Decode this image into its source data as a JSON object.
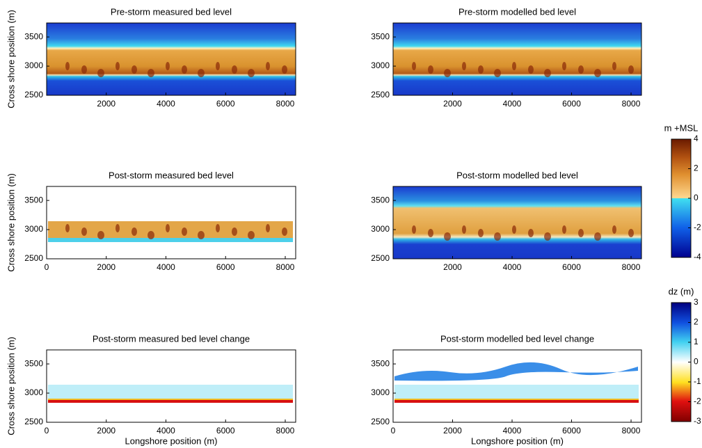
{
  "chart_data": [
    {
      "type": "heatmap",
      "title": "Pre-storm measured bed level",
      "ylabel": "Cross shore position (m)",
      "xlim": [
        0,
        8350
      ],
      "ylim": [
        2500,
        3740
      ],
      "xticks": [
        2000,
        4000,
        6000,
        8000
      ],
      "yticks": [
        2500,
        3000,
        3500
      ]
    },
    {
      "type": "heatmap",
      "title": "Pre-storm modelled bed level",
      "xlim": [
        0,
        8350
      ],
      "ylim": [
        2500,
        3740
      ],
      "xticks": [
        2000,
        4000,
        6000,
        8000
      ],
      "yticks": [
        2500,
        3000,
        3500
      ]
    },
    {
      "type": "heatmap",
      "title": "Post-storm measured bed level",
      "ylabel": "Cross shore position (m)",
      "xlim": [
        0,
        8350
      ],
      "ylim": [
        2500,
        3740
      ],
      "xticks": [
        0,
        2000,
        4000,
        6000,
        8000
      ],
      "yticks": [
        2500,
        3000,
        3500
      ]
    },
    {
      "type": "heatmap",
      "title": "Post-storm modelled bed level",
      "xlim": [
        0,
        8350
      ],
      "ylim": [
        2500,
        3740
      ],
      "xticks": [
        2000,
        4000,
        6000,
        8000
      ],
      "yticks": [
        2500,
        3000,
        3500
      ]
    },
    {
      "type": "heatmap",
      "title": "Post-storm measured bed level change",
      "ylabel": "Cross shore position (m)",
      "xlabel": "Longshore position (m)",
      "xlim": [
        0,
        8350
      ],
      "ylim": [
        2500,
        3740
      ],
      "xticks": [
        0,
        2000,
        4000,
        6000,
        8000
      ],
      "yticks": [
        2500,
        3000,
        3500
      ]
    },
    {
      "type": "heatmap",
      "title": "Post-storm modelled bed level change",
      "xlabel": "Longshore position (m)",
      "xlim": [
        0,
        8350
      ],
      "ylim": [
        2500,
        3740
      ],
      "xticks": [
        0,
        2000,
        4000,
        6000,
        8000
      ],
      "yticks": [
        2500,
        3000,
        3500
      ]
    },
    {
      "type": "colorbar",
      "title": "m +MSL",
      "ylim": [
        -4,
        4
      ],
      "yticks": [
        -4,
        -2,
        0,
        2,
        4
      ]
    },
    {
      "type": "colorbar",
      "title": "dz (m)",
      "ylim": [
        -3,
        3
      ],
      "yticks": [
        -3,
        -2,
        -1,
        0,
        1,
        2,
        3
      ]
    }
  ]
}
